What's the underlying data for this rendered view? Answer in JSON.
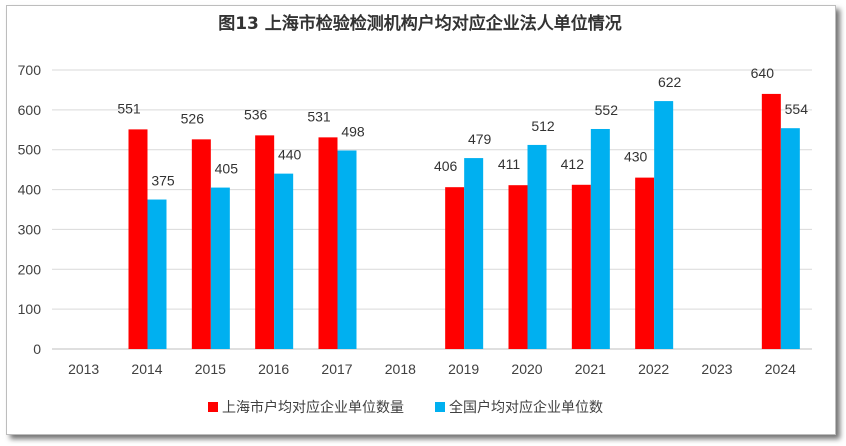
{
  "chart_data": {
    "type": "bar",
    "title": "图13 上海市检验检测机构户均对应企业法人单位情况",
    "categories": [
      "2013",
      "2014",
      "2015",
      "2016",
      "2017",
      "2018",
      "2019",
      "2020",
      "2021",
      "2022",
      "2023",
      "2024"
    ],
    "series": [
      {
        "name": "上海市户均对应企业单位数量",
        "color": "#ff0000",
        "values": [
          null,
          551,
          526,
          536,
          531,
          null,
          406,
          411,
          412,
          430,
          null,
          640
        ]
      },
      {
        "name": "全国户均对应企业单位数",
        "color": "#00b0f0",
        "values": [
          null,
          375,
          405,
          440,
          498,
          null,
          479,
          512,
          552,
          622,
          null,
          554
        ]
      }
    ],
    "ylim": [
      0,
      700
    ],
    "yticks": [
      0,
      100,
      200,
      300,
      400,
      500,
      600,
      700
    ],
    "xlabel": "",
    "ylabel": "",
    "grid": true,
    "legend": "bottom-center"
  }
}
